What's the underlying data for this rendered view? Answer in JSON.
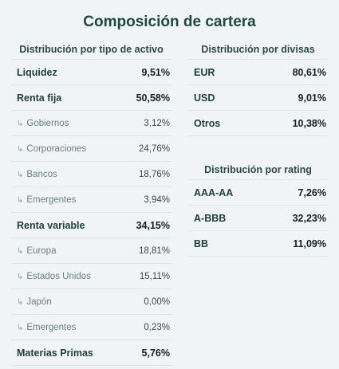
{
  "title": "Composición de cartera",
  "asset_type": {
    "heading": "Distribución por tipo de activo",
    "rows": [
      {
        "label": "Liquidez",
        "value": "9,51%",
        "sub": false
      },
      {
        "label": "Renta fija",
        "value": "50,58%",
        "sub": false
      },
      {
        "label": "Gobiernos",
        "value": "3,12%",
        "sub": true
      },
      {
        "label": "Corporaciones",
        "value": "24,76%",
        "sub": true
      },
      {
        "label": "Bancos",
        "value": "18,76%",
        "sub": true
      },
      {
        "label": "Emergentes",
        "value": "3,94%",
        "sub": true
      },
      {
        "label": "Renta variable",
        "value": "34,15%",
        "sub": false
      },
      {
        "label": "Europa",
        "value": "18,81%",
        "sub": true
      },
      {
        "label": "Estados Unidos",
        "value": "15,11%",
        "sub": true
      },
      {
        "label": "Japón",
        "value": "0,00%",
        "sub": true
      },
      {
        "label": "Emergentes",
        "value": "0,23%",
        "sub": true
      },
      {
        "label": "Materias Primas",
        "value": "5,76%",
        "sub": false
      }
    ]
  },
  "currency": {
    "heading": "Distribución por divisas",
    "rows": [
      {
        "label": "EUR",
        "value": "80,61%"
      },
      {
        "label": "USD",
        "value": "9,01%"
      },
      {
        "label": "Otros",
        "value": "10,38%"
      }
    ]
  },
  "rating": {
    "heading": "Distribución por rating",
    "rows": [
      {
        "label": "AAA-AA",
        "value": "7,26%"
      },
      {
        "label": "A-BBB",
        "value": "32,23%"
      },
      {
        "label": "BB",
        "value": "11,09%"
      }
    ]
  },
  "icons": {
    "sub_row": "return-arrow-icon"
  },
  "colors": {
    "background": "#f0f4f6",
    "title": "#1f4a3b",
    "muted_label": "#6b8178"
  }
}
